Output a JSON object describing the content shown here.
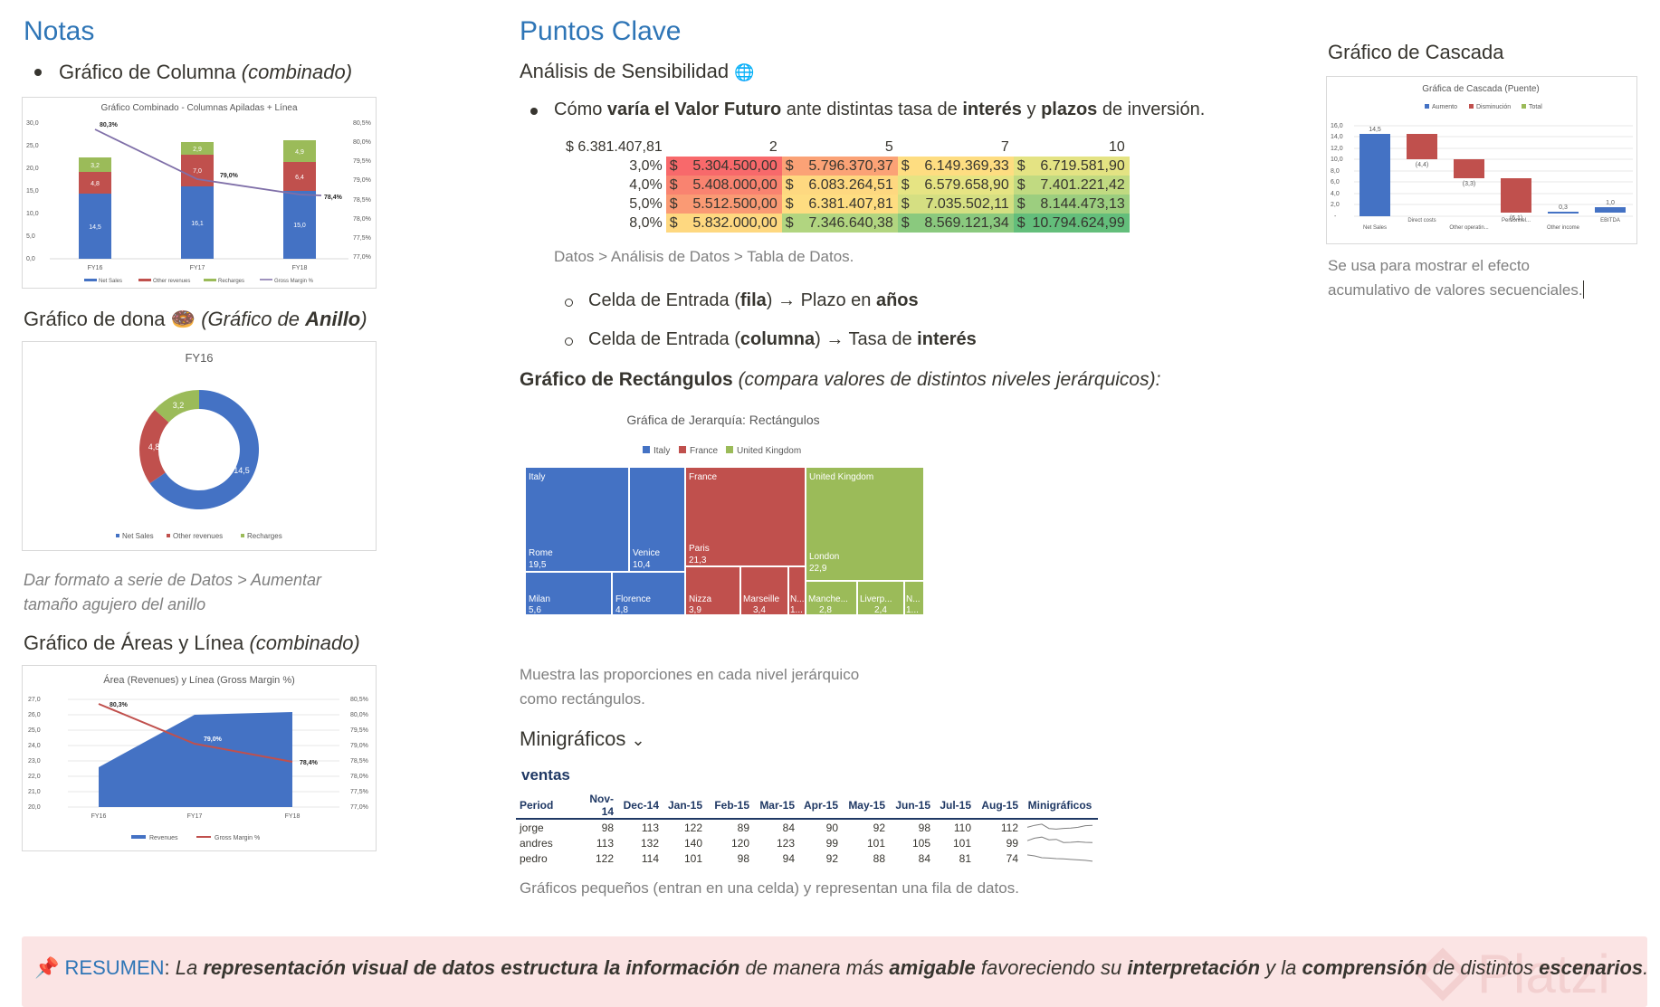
{
  "left": {
    "title": "Notas",
    "bullet1": {
      "bold": "Gráfico de Columna",
      "italic": "(combinado)"
    },
    "column_chart": {
      "title": "Gráfico Combinado - Columnas Apiladas + Línea",
      "categories": [
        "FY16",
        "FY17",
        "FY18"
      ],
      "y_ticks": [
        "30,0",
        "25,0",
        "20,0",
        "15,0",
        "10,0",
        "5,0",
        "0,0"
      ],
      "y2_ticks": [
        "80,5%",
        "80,0%",
        "79,5%",
        "79,0%",
        "78,5%",
        "78,0%",
        "77,5%",
        "77,0%"
      ],
      "labels": {
        "net_sales": [
          "14,5",
          "16,1",
          "15,0"
        ],
        "other_revenues": [
          "4,8",
          "7,0",
          "6,4"
        ],
        "recharges": [
          "3,2",
          "2,9",
          "4,9"
        ],
        "gross_margin": [
          "80,3%",
          "79,0%",
          "78,4%"
        ]
      },
      "legend": [
        "Net Sales",
        "Other revenues",
        "Recharges",
        "Gross Margin %"
      ]
    },
    "donut_heading": {
      "bold": "Gráfico de dona",
      "emoji": "🍩",
      "rest1": "(Gráfico de ",
      "bold2": "Anillo",
      "rest2": ")"
    },
    "donut_chart": {
      "title": "FY16",
      "labels": [
        "14,5",
        "4,8",
        "3,2"
      ],
      "legend": [
        "Net Sales",
        "Other revenues",
        "Recharges"
      ]
    },
    "donut_note1": "Dar formato a serie de Datos > Aumentar",
    "donut_note2": "tamaño agujero del anillo",
    "area_heading": {
      "bold": "Gráfico de Áreas y Línea",
      "italic": "(combinado)"
    },
    "area_chart": {
      "title": "Área (Revenues) y Línea (Gross Margin %)",
      "categories": [
        "FY16",
        "FY17",
        "FY18"
      ],
      "y_ticks": [
        "27,0",
        "26,0",
        "25,0",
        "24,0",
        "23,0",
        "22,0",
        "21,0",
        "20,0"
      ],
      "y2_ticks": [
        "80,5%",
        "80,0%",
        "79,5%",
        "79,0%",
        "78,5%",
        "78,0%",
        "77,5%",
        "77,0%"
      ],
      "labels": [
        "80,3%",
        "79,0%",
        "78,4%"
      ],
      "legend": [
        "Revenues",
        "Gross Margin %"
      ]
    }
  },
  "middle": {
    "title": "Puntos Clave",
    "sens_heading": "Análisis de Sensibilidad",
    "sens_icon": "🌐",
    "bullet": {
      "a": "Cómo ",
      "b": "varía el Valor Futuro",
      "c": " ante distintas tasa de ",
      "d": "interés",
      "e": " y ",
      "f": "plazos",
      "g": " de inversión."
    },
    "table": {
      "corner": "$ 6.381.407,81",
      "cols": [
        "2",
        "5",
        "7",
        "10"
      ],
      "rows": [
        {
          "rate": "3,0%",
          "vals": [
            "5.304.500,00",
            "5.796.370,37",
            "6.149.369,33",
            "6.719.581,90"
          ]
        },
        {
          "rate": "4,0%",
          "vals": [
            "5.408.000,00",
            "6.083.264,51",
            "6.579.658,90",
            "7.401.221,42"
          ]
        },
        {
          "rate": "5,0%",
          "vals": [
            "5.512.500,00",
            "6.381.407,81",
            "7.035.502,11",
            "8.144.473,13"
          ]
        },
        {
          "rate": "8,0%",
          "vals": [
            "5.832.000,00",
            "7.346.640,38",
            "8.569.121,34",
            "10.794.624,99"
          ]
        }
      ],
      "currency": "$",
      "colors": [
        [
          "#f8696b",
          "#fba276",
          "#fedd81",
          "#e4e383"
        ],
        [
          "#f98370",
          "#fed880",
          "#e6e483",
          "#c1da81"
        ],
        [
          "#fa9a74",
          "#fedd81",
          "#d5df82",
          "#9cce7f"
        ],
        [
          "#fed880",
          "#b1d580",
          "#8ac97e",
          "#63be7b"
        ]
      ]
    },
    "path": "Datos > Análisis de Datos > Tabla de Datos.",
    "sub1": {
      "a": "Celda de Entrada (",
      "b": "fila",
      "c": ") → Plazo en ",
      "d": "años"
    },
    "sub2": {
      "a": "Celda de Entrada (",
      "b": "columna",
      "c": ") → Tasa de ",
      "d": "interés"
    },
    "rect_heading": {
      "bold": "Gráfico de Rectángulos",
      "italic": "(compara valores de distintos niveles jerárquicos):"
    },
    "treemap": {
      "title": "Gráfica de Jerarquía: Rectángulos",
      "legend": [
        "Italy",
        "France",
        "United Kingdom"
      ],
      "groups": [
        "Italy",
        "France",
        "United Kingdom"
      ],
      "cells": [
        {
          "name": "Rome",
          "value": "19,5"
        },
        {
          "name": "Venice",
          "value": "10,4"
        },
        {
          "name": "Milan",
          "value": "5,6"
        },
        {
          "name": "Florence",
          "value": "4,8"
        },
        {
          "name": "Paris",
          "value": "21,3"
        },
        {
          "name": "Nizza",
          "value": "3,9"
        },
        {
          "name": "Marseille",
          "value": "3,4"
        },
        {
          "name": "N...",
          "value": "1..."
        },
        {
          "name": "London",
          "value": "22,9"
        },
        {
          "name": "Manche...",
          "value": "2,8"
        },
        {
          "name": "Liverp...",
          "value": "2,4"
        },
        {
          "name": "N...",
          "value": "1..."
        }
      ]
    },
    "rect_note1": "Muestra las proporciones en cada nivel jerárquico",
    "rect_note2": "como rectángulos.",
    "mini_heading": "Minigráficos",
    "mini_chevron": "⌄",
    "mini_label": "ventas",
    "spark": {
      "headers": [
        "Period",
        "Nov-14",
        "Dec-14",
        "Jan-15",
        "Feb-15",
        "Mar-15",
        "Apr-15",
        "May-15",
        "Jun-15",
        "Jul-15",
        "Aug-15",
        "Minigráficos"
      ],
      "rows": [
        {
          "name": "jorge",
          "vals": [
            98,
            113,
            122,
            89,
            84,
            90,
            92,
            98,
            110,
            112
          ]
        },
        {
          "name": "andres",
          "vals": [
            113,
            132,
            140,
            120,
            123,
            99,
            101,
            105,
            101,
            99
          ]
        },
        {
          "name": "pedro",
          "vals": [
            122,
            114,
            101,
            98,
            94,
            92,
            88,
            84,
            81,
            74
          ]
        }
      ]
    },
    "mini_note": "Gráficos pequeños (entran en una celda) y representan una fila de datos."
  },
  "right": {
    "title": "Gráfico de Cascada",
    "waterfall": {
      "title": "Gráfica de Cascada (Puente)",
      "legend": [
        "Aumento",
        "Disminución",
        "Total"
      ],
      "y_ticks": [
        "16,0",
        "14,0",
        "12,0",
        "10,0",
        "8,0",
        "6,0",
        "4,0",
        "2,0",
        "-"
      ],
      "categories": [
        "Net Sales",
        "Direct costs",
        "Other operatin...",
        "Personnel...",
        "Other income",
        "EBITDA"
      ],
      "labels": [
        "14,5",
        "(4,4)",
        "(3,3)",
        "(6,1)",
        "0,3",
        "1,0"
      ]
    },
    "note1": "Se usa para mostrar el efecto",
    "note2": "acumulativo de valores secuenciales."
  },
  "summary": {
    "icon": "📌",
    "label": "RESUMEN",
    "colon": ":",
    "parts": [
      {
        "t": " La ",
        "b": false
      },
      {
        "t": "representación visual de datos estructura la información",
        "b": true
      },
      {
        "t": " de manera más ",
        "b": false
      },
      {
        "t": "amigable",
        "b": true
      },
      {
        "t": " favoreciendo su ",
        "b": false
      },
      {
        "t": "interpretación",
        "b": true
      },
      {
        "t": " y la ",
        "b": false
      },
      {
        "t": "comprensión",
        "b": true
      },
      {
        "t": " de distintos ",
        "b": false
      },
      {
        "t": "escenarios",
        "b": true
      },
      {
        "t": ".",
        "b": false
      }
    ],
    "watermark": "Platzi"
  }
}
